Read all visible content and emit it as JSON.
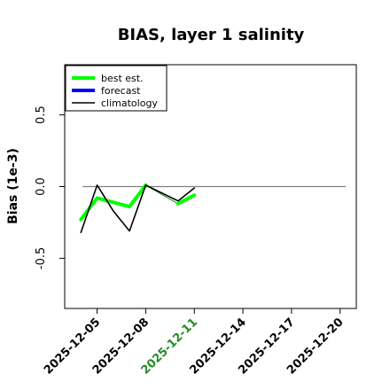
{
  "chart_data": {
    "type": "line",
    "title": "BIAS, layer 1 salinity",
    "ylabel": "Bias (1e-3)",
    "xlabel": "",
    "xlim": [
      "2025-12-03",
      "2025-12-21"
    ],
    "ylim": [
      -0.85,
      0.85
    ],
    "yticks": [
      -0.5,
      0.0,
      0.5
    ],
    "ytick_labels": [
      "-0.5",
      "0.0",
      "0.5"
    ],
    "xticks": [
      "2025-12-05",
      "2025-12-08",
      "2025-12-11",
      "2025-12-14",
      "2025-12-17",
      "2025-12-20"
    ],
    "highlight_xtick": "2025-12-11",
    "highlight_color": "#228B22",
    "reference_line": 0.0,
    "legend_position": "top-left",
    "series": [
      {
        "name": "best est.",
        "color": "#00ff00",
        "x": [
          "2025-12-04",
          "2025-12-05",
          "2025-12-07",
          "2025-12-08"
        ],
        "y": [
          -0.23,
          -0.08,
          -0.14,
          0.01
        ]
      },
      {
        "name": "best est.",
        "color": "#00ff00",
        "x": [
          "2025-12-10",
          "2025-12-11"
        ],
        "y": [
          -0.12,
          -0.06
        ]
      },
      {
        "name": "forecast",
        "color": "#0000ff",
        "x": [],
        "y": []
      },
      {
        "name": "climatology",
        "color": "#000000",
        "x": [
          "2025-12-04",
          "2025-12-05",
          "2025-12-06",
          "2025-12-07",
          "2025-12-08",
          "2025-12-10",
          "2025-12-11"
        ],
        "y": [
          -0.32,
          0.01,
          -0.17,
          -0.31,
          0.01,
          -0.1,
          -0.01
        ]
      }
    ],
    "connector": {
      "color": "#228B22",
      "x": [
        "2025-12-08",
        "2025-12-10"
      ],
      "y": [
        0.01,
        -0.12
      ]
    },
    "legend": [
      "best est.",
      "forecast",
      "climatology"
    ]
  }
}
